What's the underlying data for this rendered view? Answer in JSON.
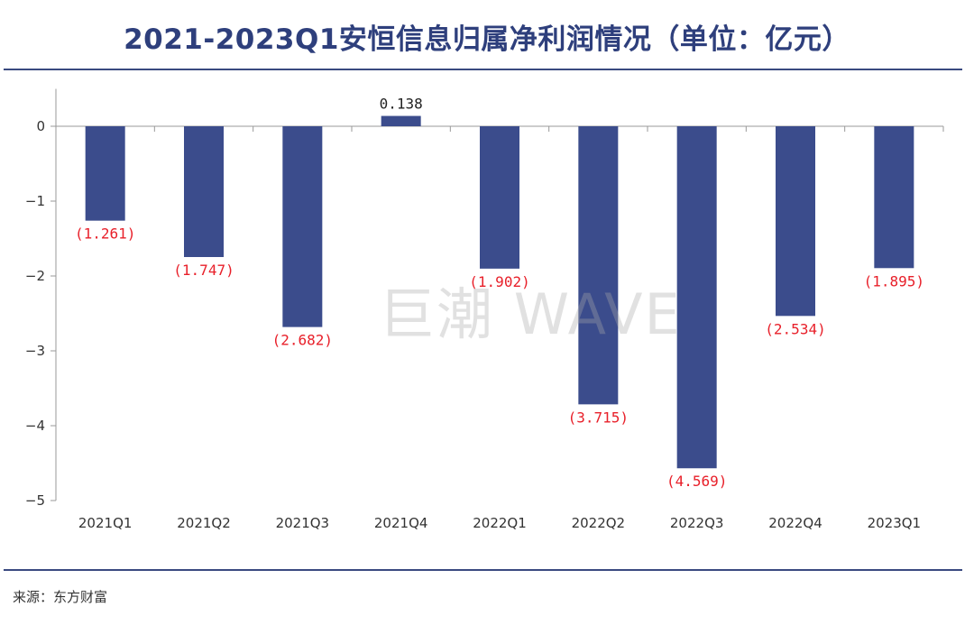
{
  "title": "2021-2023Q1安恒信息归属净利润情况（单位：亿元）",
  "source": "来源：东方财富",
  "watermark": "巨潮 WAVE",
  "colors": {
    "bar": "#3b4c8c",
    "negative_label": "#e8202a",
    "positive_label": "#222222",
    "axis": "#999999",
    "title": "#2e3f7c"
  },
  "chart_data": {
    "type": "bar",
    "title": "2021-2023Q1安恒信息归属净利润情况（单位：亿元）",
    "xlabel": "",
    "ylabel": "",
    "ylim": [
      -5,
      0.5
    ],
    "yticks": [
      0,
      -1,
      -2,
      -3,
      -4,
      -5
    ],
    "ytick_labels": [
      "0",
      "−1",
      "−2",
      "−3",
      "−4",
      "−5"
    ],
    "categories": [
      "2021Q1",
      "2021Q2",
      "2021Q3",
      "2021Q4",
      "2022Q1",
      "2022Q2",
      "2022Q3",
      "2022Q4",
      "2023Q1"
    ],
    "values": [
      -1.261,
      -1.747,
      -2.682,
      0.138,
      -1.902,
      -3.715,
      -4.569,
      -2.534,
      -1.895
    ],
    "data_labels": [
      "(1.261)",
      "(1.747)",
      "(2.682)",
      "0.138",
      "(1.902)",
      "(3.715)",
      "(4.569)",
      "(2.534)",
      "(1.895)"
    ]
  }
}
